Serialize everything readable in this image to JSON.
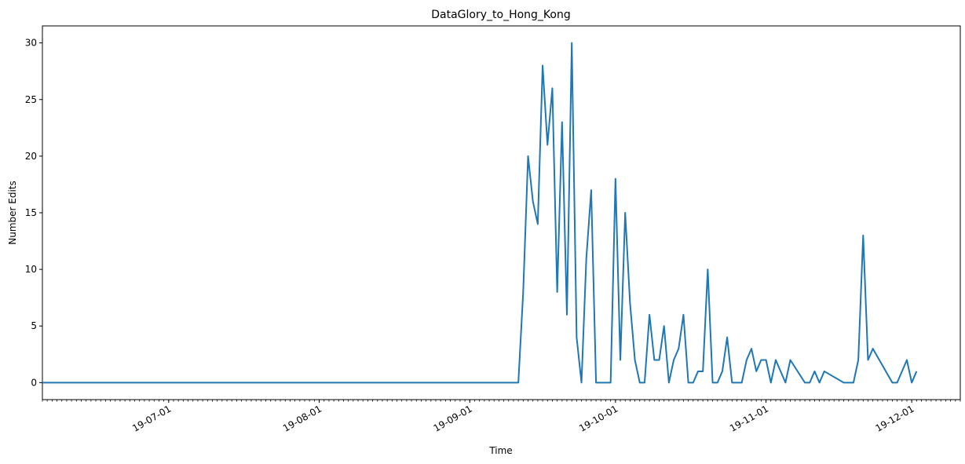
{
  "chart_data": {
    "type": "line",
    "title": "DataGlory_to_Hong_Kong",
    "xlabel": "Time",
    "ylabel": "Number Edits",
    "x_range": [
      "2019-06-05",
      "2019-12-11"
    ],
    "ylim": [
      -1.5,
      31.5
    ],
    "y_ticks": [
      0,
      5,
      10,
      15,
      20,
      25,
      30
    ],
    "x_ticks": [
      {
        "date": "2019-07-01",
        "label": "19-07-01"
      },
      {
        "date": "2019-08-01",
        "label": "19-08-01"
      },
      {
        "date": "2019-09-01",
        "label": "19-09-01"
      },
      {
        "date": "2019-10-01",
        "label": "19-10-01"
      },
      {
        "date": "2019-11-01",
        "label": "19-11-01"
      },
      {
        "date": "2019-12-01",
        "label": "19-12-01"
      }
    ],
    "grid": false,
    "line_color": "#1f77b4",
    "x": [
      "2019-06-05",
      "2019-09-11",
      "2019-09-12",
      "2019-09-13",
      "2019-09-14",
      "2019-09-15",
      "2019-09-16",
      "2019-09-17",
      "2019-09-18",
      "2019-09-19",
      "2019-09-20",
      "2019-09-21",
      "2019-09-22",
      "2019-09-23",
      "2019-09-24",
      "2019-09-25",
      "2019-09-26",
      "2019-09-27",
      "2019-09-28",
      "2019-09-29",
      "2019-09-30",
      "2019-10-01",
      "2019-10-02",
      "2019-10-03",
      "2019-10-04",
      "2019-10-05",
      "2019-10-06",
      "2019-10-07",
      "2019-10-08",
      "2019-10-09",
      "2019-10-10",
      "2019-10-11",
      "2019-10-12",
      "2019-10-13",
      "2019-10-14",
      "2019-10-15",
      "2019-10-16",
      "2019-10-17",
      "2019-10-18",
      "2019-10-19",
      "2019-10-20",
      "2019-10-21",
      "2019-10-22",
      "2019-10-23",
      "2019-10-24",
      "2019-10-25",
      "2019-10-26",
      "2019-10-27",
      "2019-10-28",
      "2019-10-29",
      "2019-10-30",
      "2019-10-31",
      "2019-11-01",
      "2019-11-02",
      "2019-11-03",
      "2019-11-05",
      "2019-11-06",
      "2019-11-09",
      "2019-11-10",
      "2019-11-11",
      "2019-11-12",
      "2019-11-13",
      "2019-11-17",
      "2019-11-19",
      "2019-11-20",
      "2019-11-21",
      "2019-11-22",
      "2019-11-23",
      "2019-11-27",
      "2019-11-28",
      "2019-11-30",
      "2019-12-01",
      "2019-12-02"
    ],
    "series": [
      {
        "values": [
          0,
          0,
          8,
          20,
          16,
          14,
          28,
          21,
          26,
          8,
          23,
          6,
          30,
          4,
          0,
          11,
          17,
          0,
          0,
          0,
          0,
          18,
          2,
          15,
          7,
          2,
          0,
          0,
          6,
          2,
          2,
          5,
          0,
          2,
          3,
          6,
          0,
          0,
          1,
          1,
          10,
          0,
          0,
          1,
          4,
          0,
          0,
          0,
          2,
          3,
          1,
          2,
          2,
          0,
          2,
          0,
          2,
          0,
          0,
          1,
          0,
          1,
          0,
          0,
          2,
          13,
          2,
          3,
          0,
          0,
          2,
          0,
          1
        ]
      }
    ]
  }
}
